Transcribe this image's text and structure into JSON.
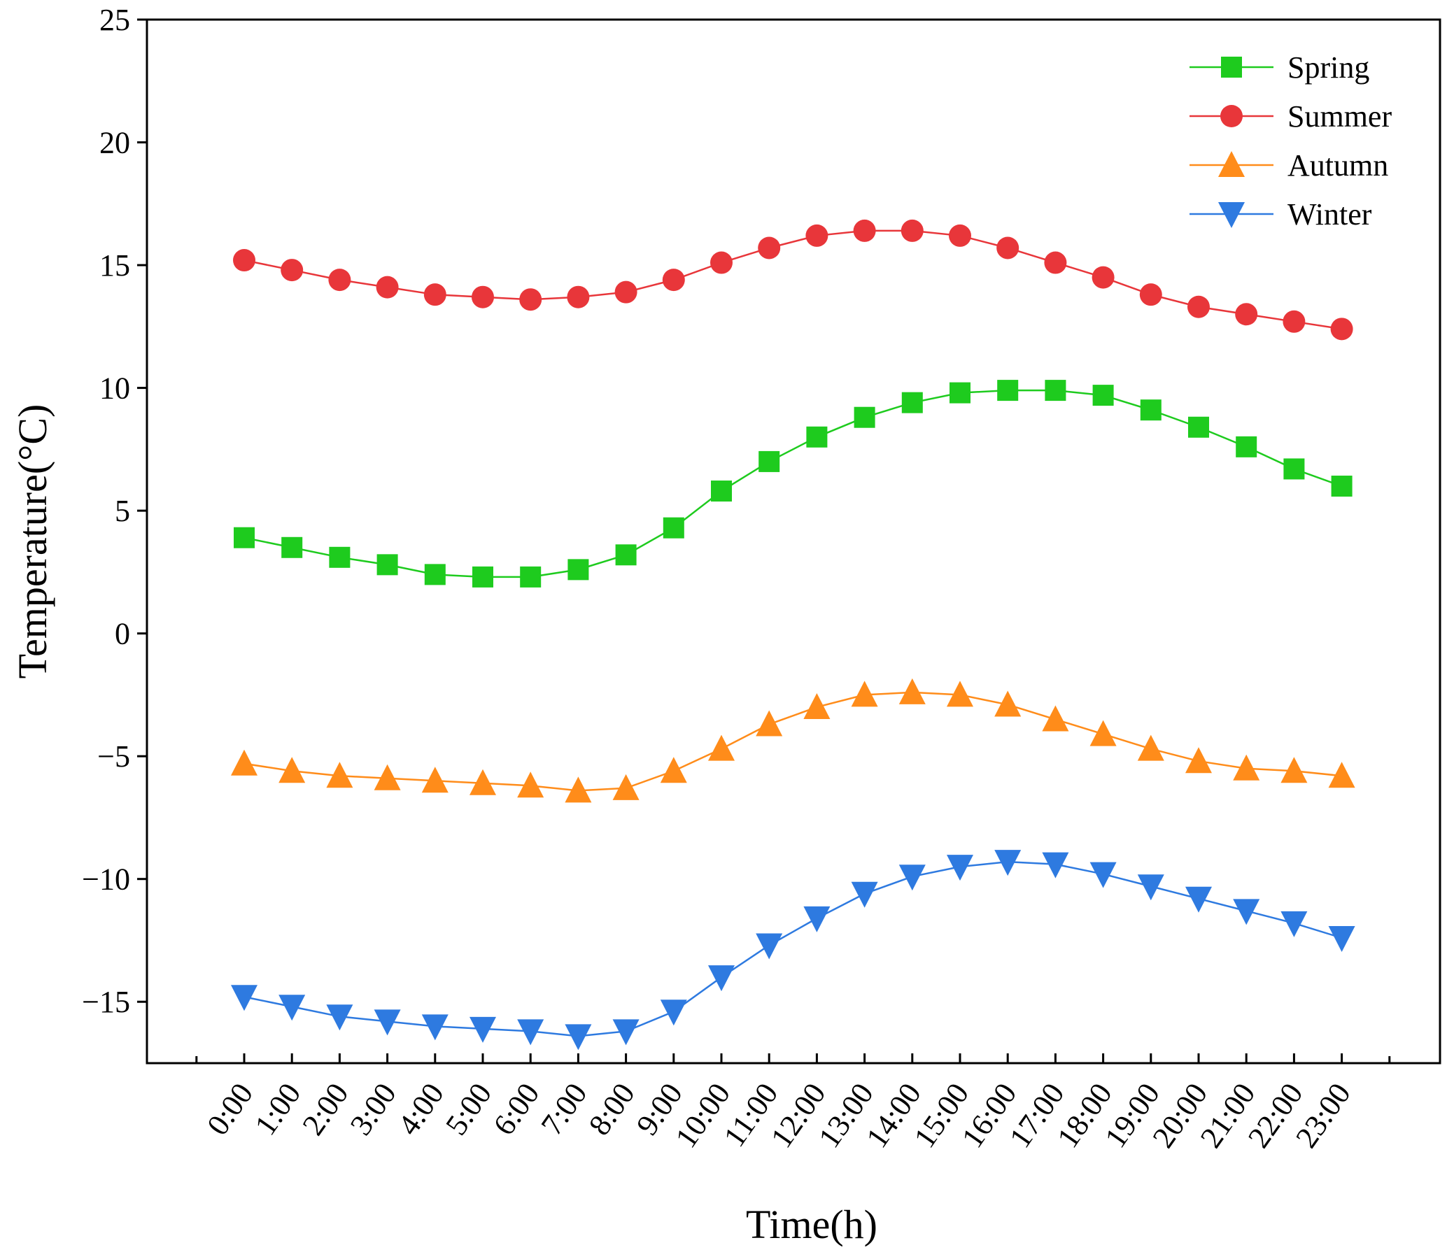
{
  "chart_data": {
    "type": "line",
    "title": "",
    "xlabel": "Time(h)",
    "ylabel": "Temperature(°C)",
    "ylim": [
      -17.5,
      25
    ],
    "yticks": [
      -15,
      -10,
      -5,
      0,
      5,
      10,
      15,
      20,
      25
    ],
    "ytick_labels": [
      "−15",
      "−10",
      "−5",
      "0",
      "5",
      "10",
      "15",
      "20",
      "25"
    ],
    "grid": false,
    "legend_position": "top-right",
    "categories": [
      "0:00",
      "1:00",
      "2:00",
      "3:00",
      "4:00",
      "5:00",
      "6:00",
      "7:00",
      "8:00",
      "9:00",
      "10:00",
      "11:00",
      "12:00",
      "13:00",
      "14:00",
      "15:00",
      "16:00",
      "17:00",
      "18:00",
      "19:00",
      "20:00",
      "21:00",
      "22:00",
      "23:00"
    ],
    "series": [
      {
        "name": "Spring",
        "color": "#1ecb1e",
        "marker": "square",
        "values": [
          3.9,
          3.5,
          3.1,
          2.8,
          2.4,
          2.3,
          2.3,
          2.6,
          3.2,
          4.3,
          5.8,
          7.0,
          8.0,
          8.8,
          9.4,
          9.8,
          9.9,
          9.9,
          9.7,
          9.1,
          8.4,
          7.6,
          6.7,
          6.0
        ]
      },
      {
        "name": "Summer",
        "color": "#e8363a",
        "marker": "circle",
        "values": [
          15.2,
          14.8,
          14.4,
          14.1,
          13.8,
          13.7,
          13.6,
          13.7,
          13.9,
          14.4,
          15.1,
          15.7,
          16.2,
          16.4,
          16.4,
          16.2,
          15.7,
          15.1,
          14.5,
          13.8,
          13.3,
          13.0,
          12.7,
          12.4
        ]
      },
      {
        "name": "Autumn",
        "color": "#ff8c1a",
        "marker": "triangle-up",
        "values": [
          -5.3,
          -5.6,
          -5.8,
          -5.9,
          -6.0,
          -6.1,
          -6.2,
          -6.4,
          -6.3,
          -5.6,
          -4.7,
          -3.7,
          -3.0,
          -2.5,
          -2.4,
          -2.5,
          -2.9,
          -3.5,
          -4.1,
          -4.7,
          -5.2,
          -5.5,
          -5.6,
          -5.8
        ]
      },
      {
        "name": "Winter",
        "color": "#2e7ae0",
        "marker": "triangle-down",
        "values": [
          -14.8,
          -15.2,
          -15.6,
          -15.8,
          -16.0,
          -16.1,
          -16.2,
          -16.4,
          -16.2,
          -15.4,
          -14.0,
          -12.7,
          -11.6,
          -10.6,
          -9.9,
          -9.5,
          -9.3,
          -9.4,
          -9.8,
          -10.3,
          -10.8,
          -11.3,
          -11.8,
          -12.4
        ]
      }
    ]
  }
}
